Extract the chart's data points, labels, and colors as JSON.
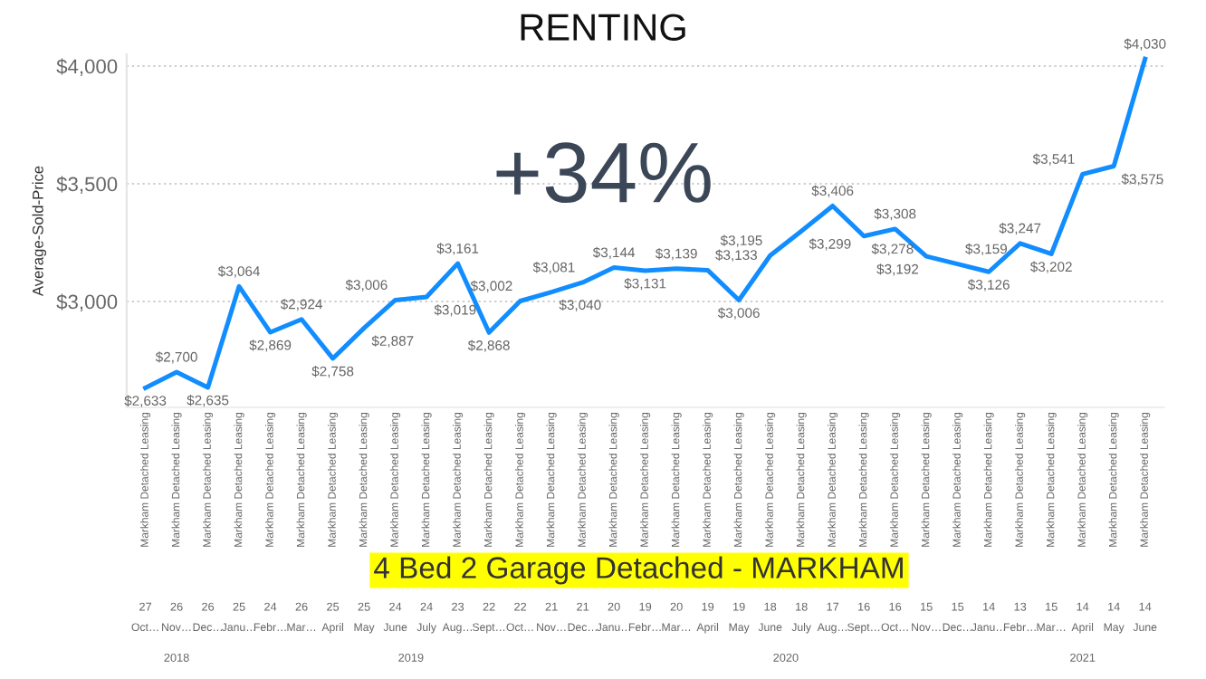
{
  "chart_data": {
    "type": "line",
    "title": "RENTING",
    "subtitle": "+34%",
    "ylabel": "Average-Sold-Price",
    "categories": [
      "Markham Detached Leasing\n27\nOct…",
      "Markham Detached Leasing\n26\nNov…",
      "Markham Detached Leasing\n26\nDec…",
      "Markham Detached Leasing\n25\nJanu…",
      "Markham Detached Leasing\n24\nFebr…",
      "Markham Detached Leasing\n26\nMar…",
      "Markham Detached Leasing\n25\nApril",
      "Markham Detached Leasing\n25\nMay",
      "Markham Detached Leasing\n24\nJune",
      "Markham Detached Leasing\n24\nJuly",
      "Markham Detached Leasing\n23\nAug…",
      "Markham Detached Leasing\n22\nSept…",
      "Markham Detached Leasing\n22\nOct…",
      "Markham Detached Leasing\n21\nNov…",
      "Markham Detached Leasing\n21\nDec…",
      "Markham Detached Leasing\n20\nJanu…",
      "Markham Detached Leasing\n19\nFebr…",
      "Markham Detached Leasing\n20\nMar…",
      "Markham Detached Leasing\n19\nApril",
      "Markham Detached Leasing\n19\nMay",
      "Markham Detached Leasing\n18\nJune",
      "Markham Detached Leasing\n18\nJuly",
      "Markham Detached Leasing\n17\nAug…",
      "Markham Detached Leasing\n16\nSept…",
      "Markham Detached Leasing\n16\nOct…",
      "Markham Detached Leasing\n15\nNov…",
      "Markham Detached Leasing\n15\nDec…",
      "Markham Detached Leasing\n14\nJanu…",
      "Markham Detached Leasing\n13\nFebr…",
      "Markham Detached Leasing\n15\nMar…",
      "Markham Detached Leasing\n14\nApril",
      "Markham Detached Leasing\n14\nMay",
      "Markham Detached Leasing\n14\nJune"
    ],
    "series": [
      {
        "color": "#118dff",
        "values": [
          2633,
          2700,
          2635,
          3064,
          2869,
          2924,
          2758,
          2887,
          3006,
          3019,
          3161,
          2868,
          3002,
          3040,
          3081,
          3144,
          3131,
          3139,
          3133,
          3006,
          3195,
          3299,
          3406,
          3278,
          3308,
          3192,
          3159,
          3126,
          3247,
          3202,
          3541,
          3575,
          4030
        ],
        "value_labels": [
          "$2,633",
          "$2,700",
          "$2,635",
          "$3,064",
          "$2,869",
          "$2,924",
          "$2,758",
          "$2,887",
          "$3,006",
          "$3,019",
          "$3,161",
          "$2,868",
          "$3,002",
          "$3,040",
          "$3,081",
          "$3,144",
          "$3,131",
          "$3,139",
          "$3,133",
          "$3,006",
          "$3,195",
          "$3,299",
          "$3,406",
          "$3,278",
          "$3,308",
          "$3,192",
          "$3,159",
          "$3,126",
          "$3,247",
          "$3,202",
          "$3,541",
          "$3,575",
          "$4,030"
        ]
      }
    ],
    "ylim": [
      2550,
      4050
    ],
    "yticks": [
      {
        "value": 3000,
        "label": "$3,000"
      },
      {
        "value": 3500,
        "label": "$3,500"
      },
      {
        "value": 4000,
        "label": "$4,000"
      }
    ],
    "grid": "y",
    "legend": false,
    "marker": "none",
    "line_style": "solid",
    "annotations": [
      "4 Bed 2 Garage Detached - MARKHAM",
      "2018",
      "2019",
      "2020",
      "2021"
    ]
  }
}
